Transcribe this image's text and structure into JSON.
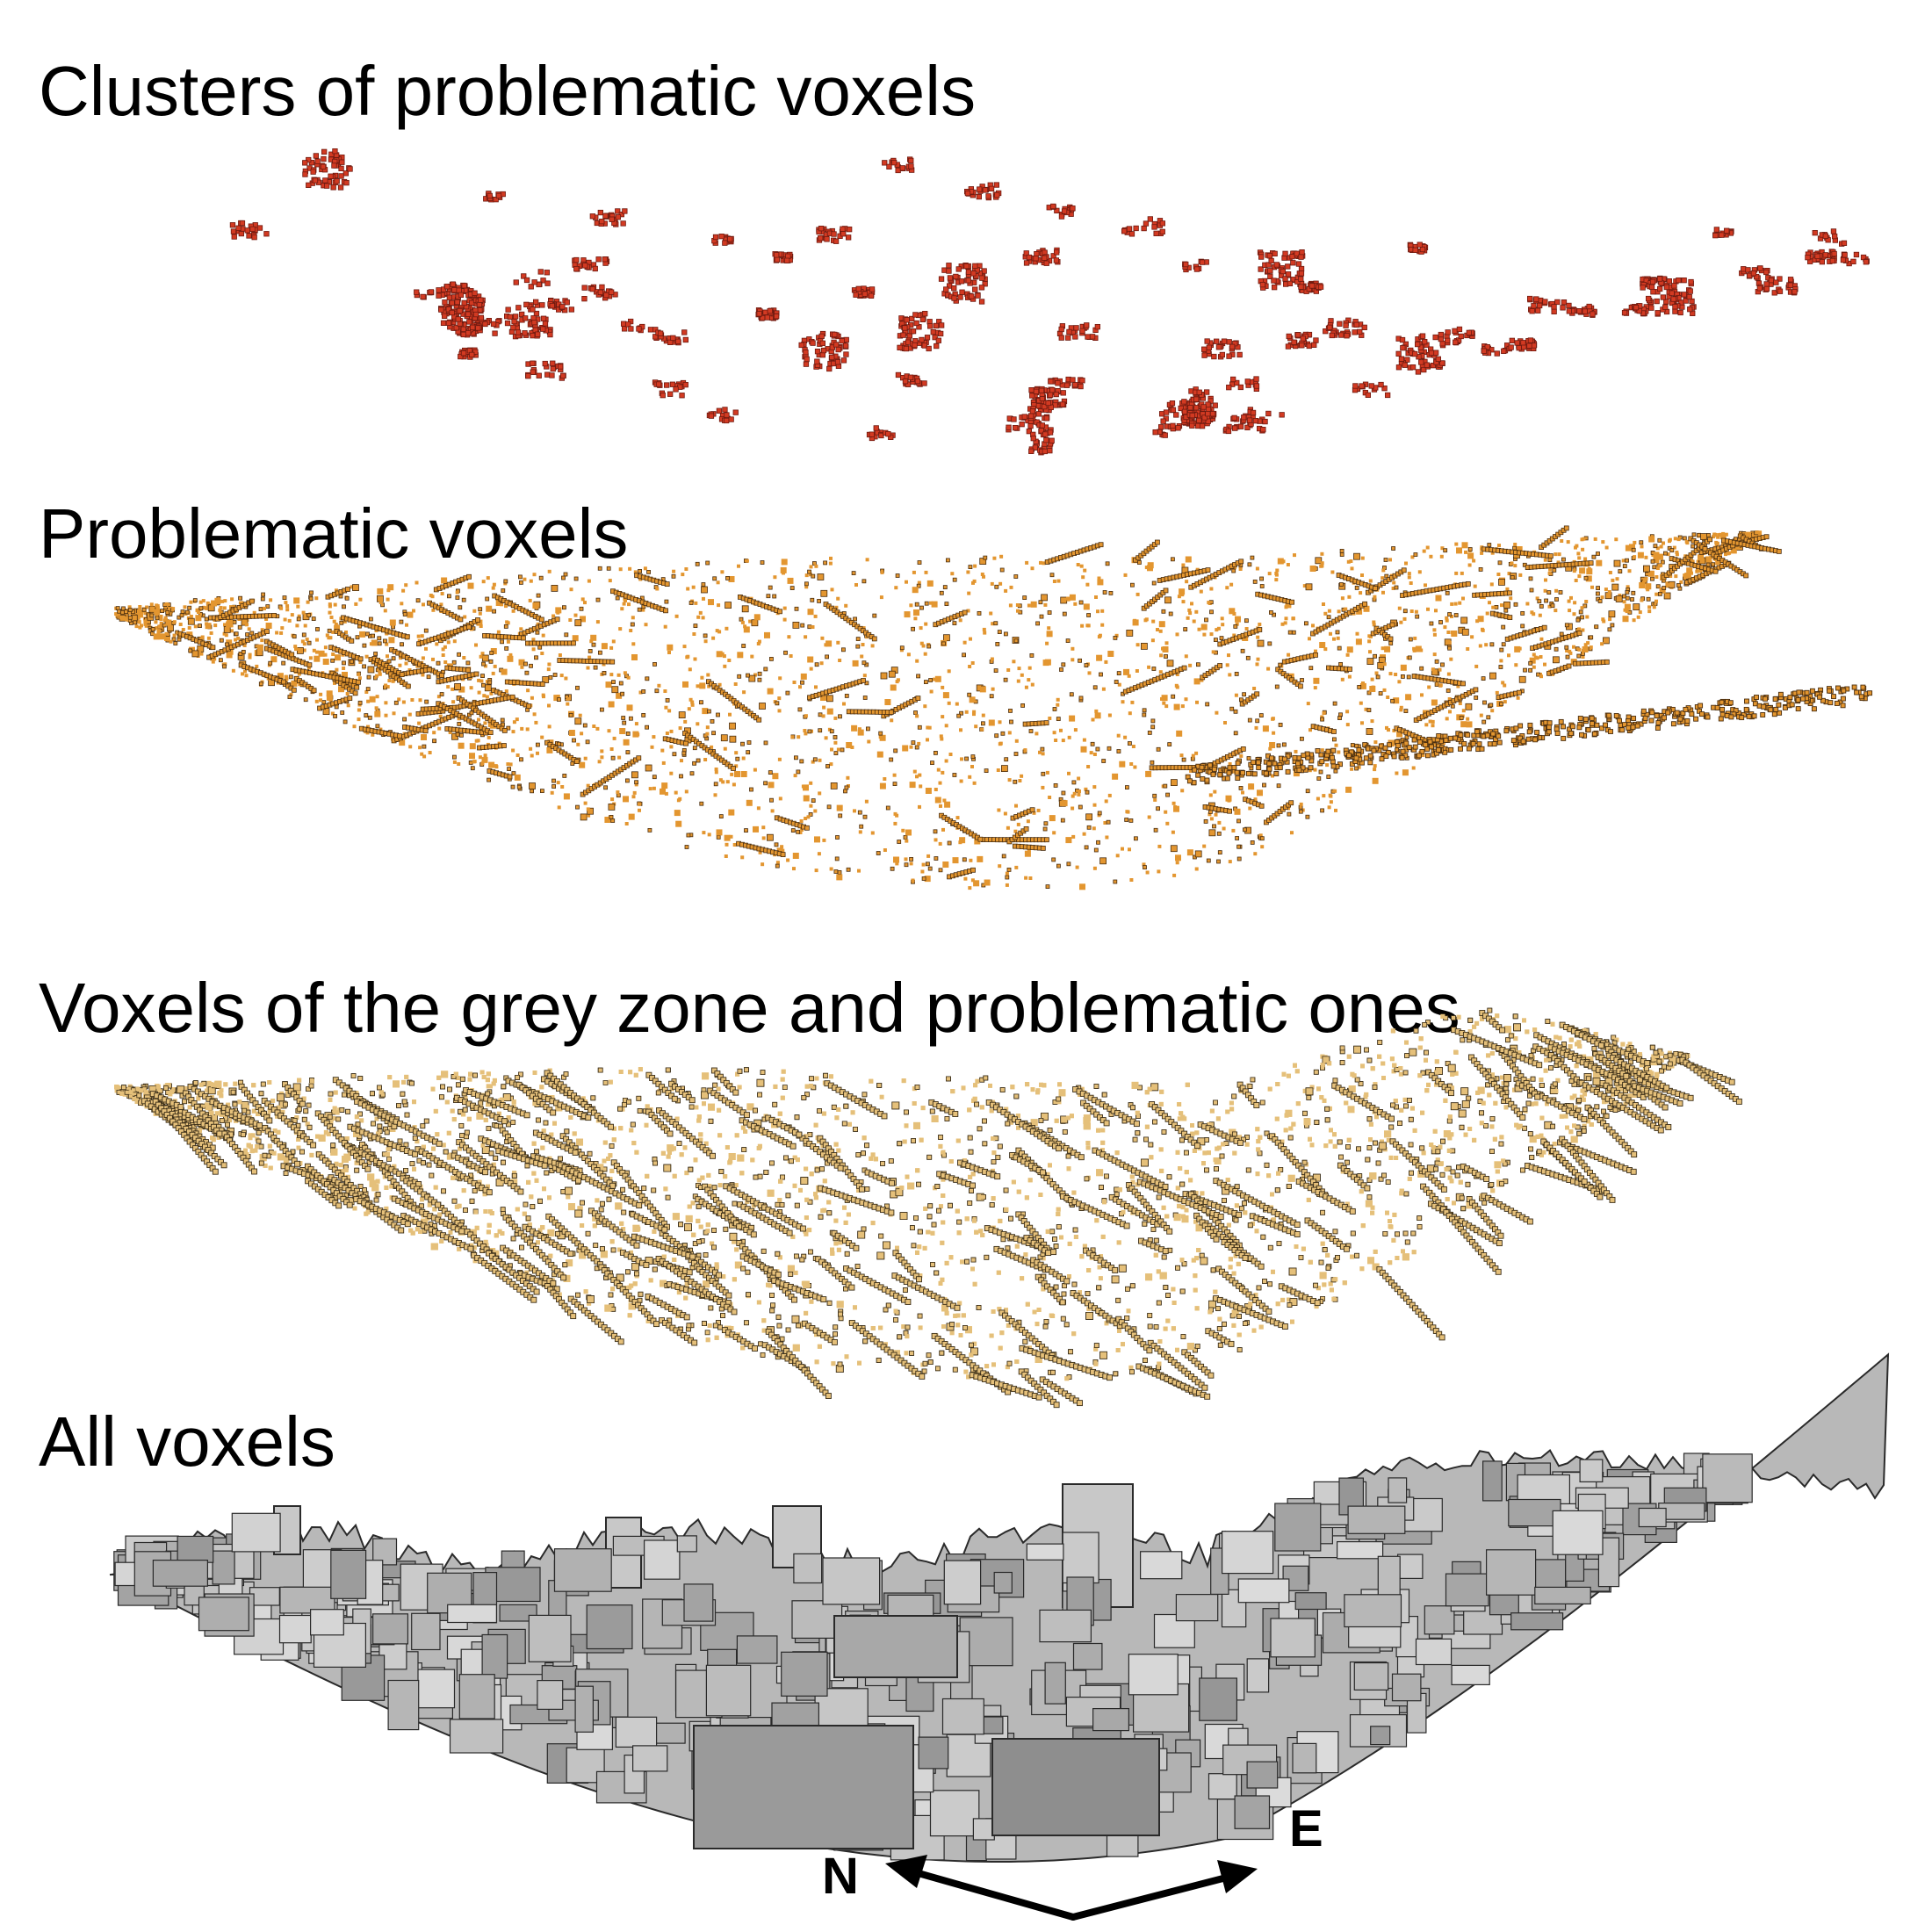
{
  "panels": [
    {
      "id": "clusters",
      "title": "Clusters of problematic voxels",
      "color": "#d23a22",
      "edge": "#6e1a10"
    },
    {
      "id": "problematic",
      "title": "Problematic voxels",
      "color": "#e39630",
      "edge": "#4a2e10"
    },
    {
      "id": "grey_zone",
      "title": "Voxels of the grey zone and problematic ones",
      "color": "#e5c07a",
      "edge": "#3b2e18"
    },
    {
      "id": "all",
      "title": "All voxels",
      "color": "#b8b8b8",
      "edge": "#2a2a2a"
    }
  ],
  "compass": {
    "left_label": "N",
    "right_label": "E"
  }
}
